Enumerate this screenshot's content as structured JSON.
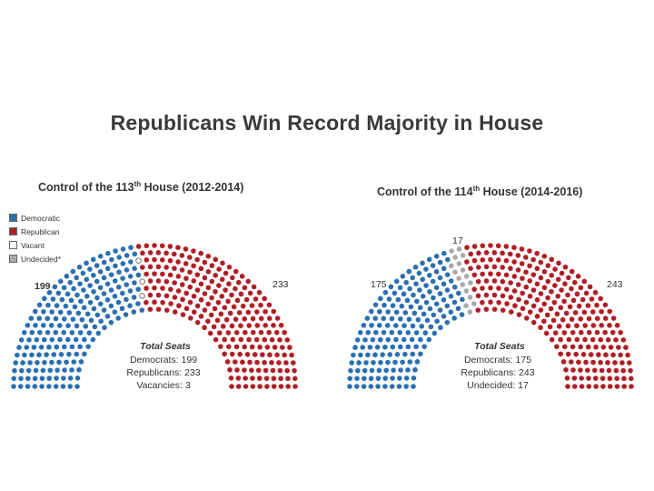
{
  "title": "Republicans Win Record Majority in House",
  "legend": [
    {
      "label": "Democratic",
      "color": "#2a6fb0",
      "icon": "square-swatch-blue"
    },
    {
      "label": "Republican",
      "color": "#b01e24",
      "icon": "square-swatch-red"
    },
    {
      "label": "Vacant",
      "color": "#ffffff",
      "icon": "square-swatch-white"
    },
    {
      "label": "Undecided*",
      "color": "#a9a9a9",
      "icon": "square-swatch-gray"
    }
  ],
  "chart_data": [
    {
      "type": "parliament-hemicycle",
      "title_prefix": "Control of the 113",
      "title_sup": "th",
      "title_suffix": " House (2012-2014)",
      "total": 435,
      "order": [
        "Democratic",
        "Vacant",
        "Republican"
      ],
      "seats": {
        "Democratic": 199,
        "Republican": 233,
        "Vacant": 3
      },
      "side_labels": {
        "left": "199",
        "right": "233"
      },
      "totals_heading": "Total Seats",
      "totals_lines": [
        "Democrats: 199",
        "Republicans: 233",
        "Vacancies: 3"
      ]
    },
    {
      "type": "parliament-hemicycle",
      "title_prefix": "Control of the 114",
      "title_sup": "th",
      "title_suffix": " House (2014-2016)",
      "total": 435,
      "order": [
        "Democratic",
        "Undecided",
        "Republican"
      ],
      "seats": {
        "Democratic": 175,
        "Republican": 243,
        "Undecided": 17
      },
      "side_labels": {
        "left": "175",
        "top": "17",
        "right": "243"
      },
      "totals_heading": "Total Seats",
      "totals_lines": [
        "Democrats: 175",
        "Republicans: 243",
        "Undecided: 17"
      ]
    }
  ],
  "colors": {
    "Democratic": "#2a6fb0",
    "Republican": "#b01e24",
    "Vacant": "#ffffff",
    "Undecided": "#a9a9a9"
  }
}
